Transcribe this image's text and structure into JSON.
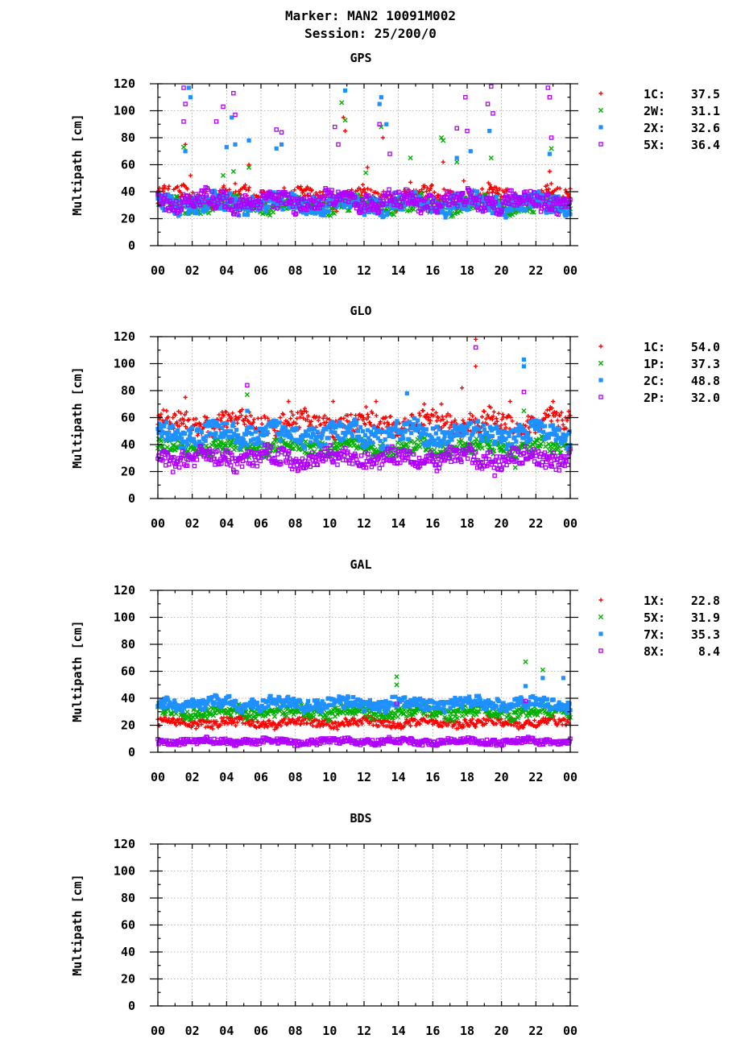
{
  "header": {
    "line1": "Marker: MAN2 10091M002",
    "line2": "Session: 25/200/0"
  },
  "chart_data": [
    {
      "type": "scatter",
      "title": "GPS",
      "ylabel": "Multipath [cm]",
      "xlabel": "",
      "ylim": [
        0,
        120
      ],
      "xlim": [
        0,
        24
      ],
      "xticklabels": [
        "00",
        "02",
        "04",
        "06",
        "08",
        "10",
        "12",
        "14",
        "16",
        "18",
        "20",
        "22",
        "00"
      ],
      "yticks": [
        0,
        20,
        40,
        60,
        80,
        100,
        120
      ],
      "grid": true,
      "legend_position": "right",
      "series": [
        {
          "name": "1C",
          "rms": "37.5",
          "color": "#ff0000",
          "marker": "plus",
          "base": 36,
          "noise": 6,
          "spikes": [
            [
              1.6,
              75
            ],
            [
              1.9,
              52
            ],
            [
              4.5,
              46
            ],
            [
              5.3,
              60
            ],
            [
              10.8,
              95
            ],
            [
              10.9,
              85
            ],
            [
              12.2,
              58
            ],
            [
              13.1,
              80
            ],
            [
              14.7,
              47
            ],
            [
              16.6,
              62
            ],
            [
              17.8,
              48
            ],
            [
              22.8,
              55
            ]
          ]
        },
        {
          "name": "2W",
          "rms": "31.1",
          "color": "#00b000",
          "marker": "cross",
          "base": 30,
          "noise": 5,
          "spikes": [
            [
              1.5,
              73
            ],
            [
              3.8,
              52
            ],
            [
              4.4,
              55
            ],
            [
              5.3,
              58
            ],
            [
              10.7,
              106
            ],
            [
              10.9,
              93
            ],
            [
              12.1,
              54
            ],
            [
              13.0,
              88
            ],
            [
              14.7,
              65
            ],
            [
              16.5,
              80
            ],
            [
              16.6,
              78
            ],
            [
              17.4,
              62
            ],
            [
              19.4,
              65
            ],
            [
              22.9,
              72
            ]
          ]
        },
        {
          "name": "2X",
          "rms": "32.6",
          "color": "#1e90ff",
          "marker": "square",
          "base": 31,
          "noise": 6,
          "spikes": [
            [
              1.6,
              70
            ],
            [
              1.8,
              117
            ],
            [
              1.9,
              110
            ],
            [
              4.0,
              73
            ],
            [
              4.3,
              95
            ],
            [
              4.5,
              75
            ],
            [
              5.3,
              78
            ],
            [
              6.9,
              72
            ],
            [
              7.2,
              75
            ],
            [
              10.9,
              115
            ],
            [
              12.9,
              105
            ],
            [
              13.0,
              110
            ],
            [
              13.3,
              90
            ],
            [
              17.4,
              65
            ],
            [
              18.2,
              70
            ],
            [
              19.3,
              85
            ],
            [
              22.8,
              68
            ]
          ]
        },
        {
          "name": "5X",
          "rms": "36.4",
          "color": "#b000ff",
          "marker": "opensquare",
          "base": 33,
          "noise": 6,
          "spikes": [
            [
              1.5,
              117
            ],
            [
              1.6,
              105
            ],
            [
              1.5,
              92
            ],
            [
              3.4,
              92
            ],
            [
              3.8,
              103
            ],
            [
              4.4,
              113
            ],
            [
              4.5,
              97
            ],
            [
              6.9,
              86
            ],
            [
              7.2,
              84
            ],
            [
              10.3,
              88
            ],
            [
              10.5,
              75
            ],
            [
              12.9,
              90
            ],
            [
              13.5,
              68
            ],
            [
              17.4,
              87
            ],
            [
              17.9,
              110
            ],
            [
              18.0,
              85
            ],
            [
              19.2,
              105
            ],
            [
              19.4,
              118
            ],
            [
              19.5,
              98
            ],
            [
              22.7,
              117
            ],
            [
              22.8,
              110
            ],
            [
              22.9,
              80
            ]
          ]
        }
      ]
    },
    {
      "type": "scatter",
      "title": "GLO",
      "ylabel": "Multipath [cm]",
      "xlabel": "",
      "ylim": [
        0,
        120
      ],
      "xlim": [
        0,
        24
      ],
      "xticklabels": [
        "00",
        "02",
        "04",
        "06",
        "08",
        "10",
        "12",
        "14",
        "16",
        "18",
        "20",
        "22",
        "00"
      ],
      "yticks": [
        0,
        20,
        40,
        60,
        80,
        100,
        120
      ],
      "grid": true,
      "legend_position": "right",
      "series": [
        {
          "name": "1C",
          "rms": "54.0",
          "color": "#ff0000",
          "marker": "plus",
          "base": 56,
          "noise": 7,
          "spikes": [
            [
              1.6,
              75
            ],
            [
              7.6,
              72
            ],
            [
              10.2,
              72
            ],
            [
              12.7,
              72
            ],
            [
              15.5,
              70
            ],
            [
              16.5,
              70
            ],
            [
              17.7,
              82
            ],
            [
              18.5,
              118
            ],
            [
              18.5,
              98
            ],
            [
              20.5,
              72
            ],
            [
              23.0,
              72
            ]
          ]
        },
        {
          "name": "1P",
          "rms": "37.3",
          "color": "#00b000",
          "marker": "cross",
          "base": 38,
          "noise": 5,
          "spikes": [
            [
              5.2,
              77
            ],
            [
              21.3,
              65
            ],
            [
              20.8,
              23
            ]
          ]
        },
        {
          "name": "2C",
          "rms": "48.8",
          "color": "#1e90ff",
          "marker": "square",
          "base": 48,
          "noise": 7,
          "spikes": [
            [
              5.2,
              65
            ],
            [
              14.5,
              78
            ],
            [
              21.3,
              103
            ],
            [
              21.3,
              98
            ]
          ]
        },
        {
          "name": "2P",
          "rms": "32.0",
          "color": "#b000ff",
          "marker": "opensquare",
          "base": 30,
          "noise": 6,
          "spikes": [
            [
              5.2,
              84
            ],
            [
              18.5,
              112
            ],
            [
              21.3,
              79
            ],
            [
              19.6,
              17
            ]
          ]
        }
      ]
    },
    {
      "type": "scatter",
      "title": "GAL",
      "ylabel": "Multipath [cm]",
      "xlabel": "",
      "ylim": [
        0,
        120
      ],
      "xlim": [
        0,
        24
      ],
      "xticklabels": [
        "00",
        "02",
        "04",
        "06",
        "08",
        "10",
        "12",
        "14",
        "16",
        "18",
        "20",
        "22",
        "00"
      ],
      "yticks": [
        0,
        20,
        40,
        60,
        80,
        100,
        120
      ],
      "grid": true,
      "legend_position": "right",
      "series": [
        {
          "name": "1X",
          "rms": "22.8",
          "color": "#ff0000",
          "marker": "plus",
          "base": 22,
          "noise": 3,
          "spikes": []
        },
        {
          "name": "5X",
          "rms": "31.9",
          "color": "#00b000",
          "marker": "cross",
          "base": 30,
          "noise": 4,
          "spikes": [
            [
              13.9,
              56
            ],
            [
              13.9,
              50
            ],
            [
              21.4,
              67
            ],
            [
              22.4,
              61
            ]
          ]
        },
        {
          "name": "7X",
          "rms": "35.3",
          "color": "#1e90ff",
          "marker": "square",
          "base": 36,
          "noise": 4,
          "spikes": [
            [
              21.4,
              49
            ],
            [
              22.4,
              55
            ],
            [
              23.6,
              55
            ]
          ]
        },
        {
          "name": "8X",
          "rms": "8.4",
          "color": "#b000ff",
          "marker": "opensquare",
          "base": 8,
          "noise": 2,
          "spikes": [
            [
              13.9,
              36
            ],
            [
              21.4,
              38
            ]
          ]
        }
      ]
    },
    {
      "type": "scatter",
      "title": "BDS",
      "ylabel": "Multipath [cm]",
      "xlabel": "",
      "ylim": [
        0,
        120
      ],
      "xlim": [
        0,
        24
      ],
      "xticklabels": [
        "00",
        "02",
        "04",
        "06",
        "08",
        "10",
        "12",
        "14",
        "16",
        "18",
        "20",
        "22",
        "00"
      ],
      "yticks": [
        0,
        20,
        40,
        60,
        80,
        100,
        120
      ],
      "grid": true,
      "legend_position": "none",
      "series": []
    }
  ]
}
